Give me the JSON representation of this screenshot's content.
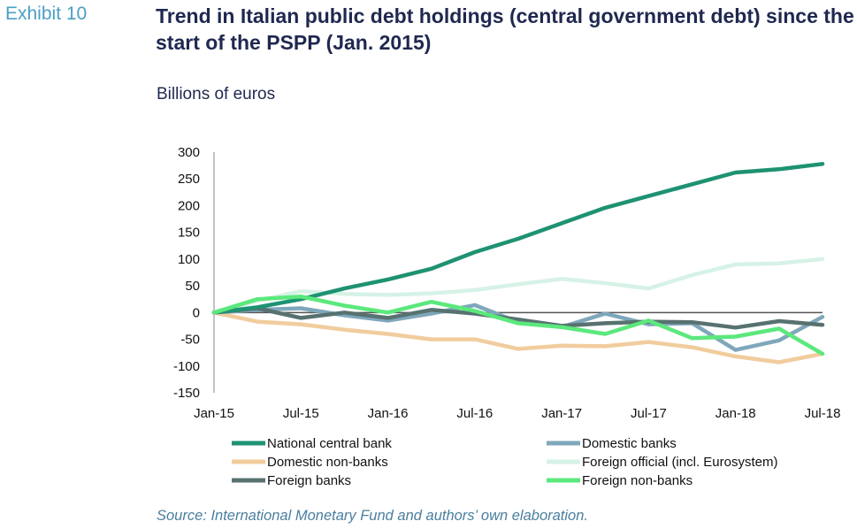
{
  "exhibit_label": "Exhibit 10",
  "chart_data": {
    "type": "line",
    "title": "Trend in Italian public debt holdings (central government debt) since the start of the PSPP (Jan. 2015)",
    "ylabel": "Billions of euros",
    "source": "Source: International Monetary Fund and authors’ own elaboration.",
    "ylim": [
      -150,
      300
    ],
    "yticks": [
      300,
      250,
      200,
      150,
      100,
      50,
      0,
      -50,
      -100,
      -150
    ],
    "x": [
      "Jan-15",
      "Apr-15",
      "Jul-15",
      "Oct-15",
      "Jan-16",
      "Apr-16",
      "Jul-16",
      "Oct-16",
      "Jan-17",
      "Apr-17",
      "Jul-17",
      "Oct-17",
      "Jan-18",
      "Apr-18",
      "Jul-18"
    ],
    "xtick_labels": [
      "Jan-15",
      "Jul-15",
      "Jan-16",
      "Jul-16",
      "Jan-17",
      "Jul-17",
      "Jan-18",
      "Jul-18"
    ],
    "grid": false,
    "legend_position": "bottom",
    "series": [
      {
        "name": "National central bank",
        "color": "#1e9272",
        "values": [
          0,
          10,
          25,
          45,
          62,
          82,
          113,
          138,
          167,
          196,
          218,
          240,
          262,
          268,
          278
        ]
      },
      {
        "name": "Domestic banks",
        "color": "#7fa7bb",
        "values": [
          0,
          5,
          8,
          -5,
          -15,
          -2,
          14,
          -18,
          -27,
          -2,
          -22,
          -20,
          -70,
          -52,
          -8
        ]
      },
      {
        "name": "Domestic non-banks",
        "color": "#f1cc9d",
        "values": [
          0,
          -17,
          -22,
          -32,
          -40,
          -50,
          -50,
          -68,
          -62,
          -63,
          -55,
          -65,
          -82,
          -93,
          -77
        ]
      },
      {
        "name": "Foreign official (incl. Eurosystem)",
        "color": "#d6f2e6",
        "values": [
          0,
          22,
          40,
          35,
          33,
          36,
          42,
          53,
          63,
          55,
          45,
          70,
          90,
          92,
          100
        ]
      },
      {
        "name": "Foreign banks",
        "color": "#577270",
        "values": [
          0,
          8,
          -10,
          0,
          -10,
          5,
          -2,
          -13,
          -25,
          -20,
          -17,
          -18,
          -28,
          -16,
          -23
        ]
      },
      {
        "name": "Foreign non-banks",
        "color": "#5be87c",
        "values": [
          0,
          25,
          30,
          13,
          0,
          20,
          3,
          -20,
          -27,
          -40,
          -15,
          -48,
          -45,
          -30,
          -77
        ]
      }
    ]
  }
}
